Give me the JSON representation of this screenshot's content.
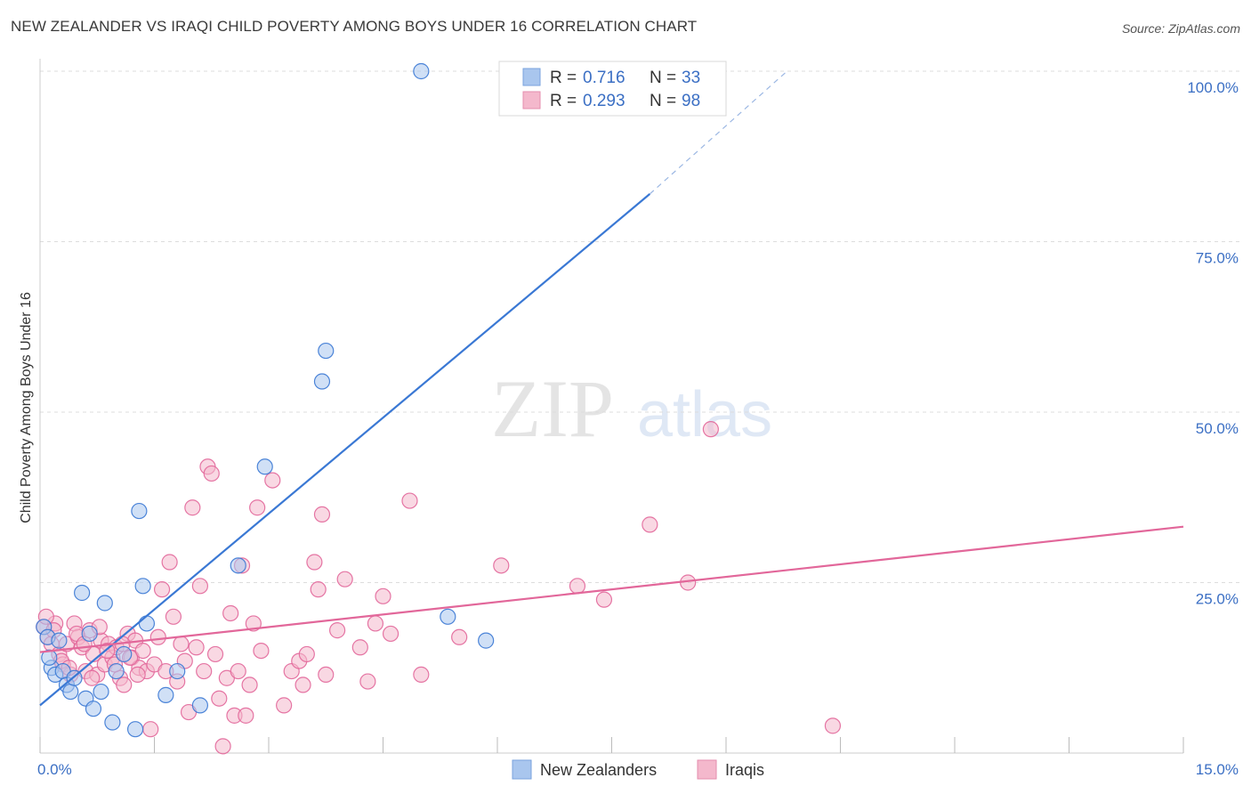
{
  "title": "NEW ZEALANDER VS IRAQI CHILD POVERTY AMONG BOYS UNDER 16 CORRELATION CHART",
  "source": "Source: ZipAtlas.com",
  "watermark": {
    "zip": "ZIP",
    "atlas": "atlas"
  },
  "colors": {
    "blue": "#3a78d4",
    "blue_fill": "#a9c6ee",
    "pink": "#e2679a",
    "pink_fill": "#f4b8cc",
    "tick": "#3b6fc4",
    "grid": "#dddddd"
  },
  "chart_data": {
    "type": "scatter",
    "title": "NEW ZEALANDER VS IRAQI CHILD POVERTY AMONG BOYS UNDER 16 CORRELATION CHART",
    "xlabel": "",
    "ylabel": "Child Poverty Among Boys Under 16",
    "xlim": [
      0,
      15
    ],
    "ylim": [
      0,
      100
    ],
    "x_tick_labels": {
      "min": "0.0%",
      "max": "15.0%"
    },
    "y_ticks": [
      {
        "value": 25,
        "label": "25.0%"
      },
      {
        "value": 50,
        "label": "50.0%"
      },
      {
        "value": 75,
        "label": "75.0%"
      },
      {
        "value": 100,
        "label": "100.0%"
      }
    ],
    "legend": {
      "r_label": "R =",
      "n_label": "N =",
      "entries": [
        {
          "series": "New Zealanders",
          "r": "0.716",
          "n": "33"
        },
        {
          "series": "Iraqis",
          "r": "0.293",
          "n": "98"
        }
      ]
    },
    "series": [
      {
        "name": "New Zealanders",
        "color": "#3a78d4",
        "trend": {
          "x0": 0,
          "y0": 7,
          "x1": 8.0,
          "y1": 82,
          "dash_x1": 9.8,
          "dash_y1": 100
        },
        "points": [
          [
            0.05,
            18.5
          ],
          [
            0.1,
            17
          ],
          [
            0.15,
            12.5
          ],
          [
            0.2,
            11.5
          ],
          [
            0.25,
            16.5
          ],
          [
            0.3,
            12
          ],
          [
            0.35,
            10
          ],
          [
            0.4,
            9
          ],
          [
            0.45,
            11
          ],
          [
            0.55,
            23.5
          ],
          [
            0.6,
            8
          ],
          [
            0.7,
            6.5
          ],
          [
            0.8,
            9
          ],
          [
            0.85,
            22
          ],
          [
            0.95,
            4.5
          ],
          [
            1.0,
            12
          ],
          [
            1.1,
            14.5
          ],
          [
            1.25,
            3.5
          ],
          [
            1.3,
            35.5
          ],
          [
            1.35,
            24.5
          ],
          [
            1.4,
            19
          ],
          [
            1.65,
            8.5
          ],
          [
            1.8,
            12
          ],
          [
            2.1,
            7
          ],
          [
            2.6,
            27.5
          ],
          [
            2.95,
            42
          ],
          [
            3.7,
            54.5
          ],
          [
            3.75,
            59
          ],
          [
            5.0,
            100
          ],
          [
            5.35,
            20
          ],
          [
            5.85,
            16.5
          ],
          [
            0.12,
            14
          ],
          [
            0.65,
            17.5
          ]
        ]
      },
      {
        "name": "Iraqis",
        "color": "#e2679a",
        "trend": {
          "x0": 0,
          "y0": 14.8,
          "x1": 15.0,
          "y1": 33.2
        },
        "points": [
          [
            0.05,
            18.5
          ],
          [
            0.1,
            17
          ],
          [
            0.15,
            16
          ],
          [
            0.2,
            19
          ],
          [
            0.25,
            14.5
          ],
          [
            0.3,
            13
          ],
          [
            0.35,
            16
          ],
          [
            0.4,
            11.5
          ],
          [
            0.45,
            19
          ],
          [
            0.5,
            17
          ],
          [
            0.55,
            15.5
          ],
          [
            0.6,
            12
          ],
          [
            0.65,
            18
          ],
          [
            0.7,
            14.5
          ],
          [
            0.75,
            11.5
          ],
          [
            0.8,
            16.5
          ],
          [
            0.85,
            13
          ],
          [
            0.9,
            16
          ],
          [
            0.95,
            14
          ],
          [
            1.0,
            15.5
          ],
          [
            1.05,
            11
          ],
          [
            1.1,
            10
          ],
          [
            1.15,
            17.5
          ],
          [
            1.2,
            14
          ],
          [
            1.25,
            16.5
          ],
          [
            1.3,
            12.5
          ],
          [
            1.35,
            15
          ],
          [
            1.4,
            12
          ],
          [
            1.45,
            3.5
          ],
          [
            1.5,
            13
          ],
          [
            1.55,
            17
          ],
          [
            1.6,
            24
          ],
          [
            1.65,
            12
          ],
          [
            1.7,
            28
          ],
          [
            1.75,
            20
          ],
          [
            1.8,
            10.5
          ],
          [
            1.85,
            16
          ],
          [
            1.9,
            13.5
          ],
          [
            1.95,
            6
          ],
          [
            2.0,
            36
          ],
          [
            2.05,
            15.5
          ],
          [
            2.1,
            24.5
          ],
          [
            2.15,
            12
          ],
          [
            2.2,
            42
          ],
          [
            2.25,
            41
          ],
          [
            2.3,
            14.5
          ],
          [
            2.35,
            8
          ],
          [
            2.4,
            1
          ],
          [
            2.45,
            11
          ],
          [
            2.5,
            20.5
          ],
          [
            2.55,
            5.5
          ],
          [
            2.6,
            12
          ],
          [
            2.65,
            27.5
          ],
          [
            2.7,
            5.5
          ],
          [
            2.75,
            10
          ],
          [
            2.8,
            19
          ],
          [
            2.85,
            36
          ],
          [
            2.9,
            15
          ],
          [
            3.05,
            40
          ],
          [
            3.2,
            7
          ],
          [
            3.3,
            12
          ],
          [
            3.4,
            13.5
          ],
          [
            3.45,
            10
          ],
          [
            3.5,
            14.5
          ],
          [
            3.6,
            28
          ],
          [
            3.65,
            24
          ],
          [
            3.7,
            35
          ],
          [
            3.75,
            11.5
          ],
          [
            3.9,
            18
          ],
          [
            4.0,
            25.5
          ],
          [
            4.2,
            15.5
          ],
          [
            4.3,
            10.5
          ],
          [
            4.4,
            19
          ],
          [
            4.5,
            23
          ],
          [
            4.6,
            17.5
          ],
          [
            4.85,
            37
          ],
          [
            5.0,
            11.5
          ],
          [
            5.5,
            17
          ],
          [
            6.05,
            27.5
          ],
          [
            7.05,
            24.5
          ],
          [
            7.4,
            22.5
          ],
          [
            8.0,
            33.5
          ],
          [
            8.5,
            25
          ],
          [
            8.8,
            47.5
          ],
          [
            10.4,
            4
          ],
          [
            0.08,
            20
          ],
          [
            0.18,
            18
          ],
          [
            0.28,
            13.5
          ],
          [
            0.38,
            12.5
          ],
          [
            0.48,
            17.5
          ],
          [
            0.58,
            16
          ],
          [
            0.68,
            11
          ],
          [
            0.78,
            18.5
          ],
          [
            0.88,
            15
          ],
          [
            0.98,
            13
          ],
          [
            1.08,
            16
          ],
          [
            1.18,
            14
          ],
          [
            1.28,
            11.5
          ]
        ]
      }
    ]
  }
}
